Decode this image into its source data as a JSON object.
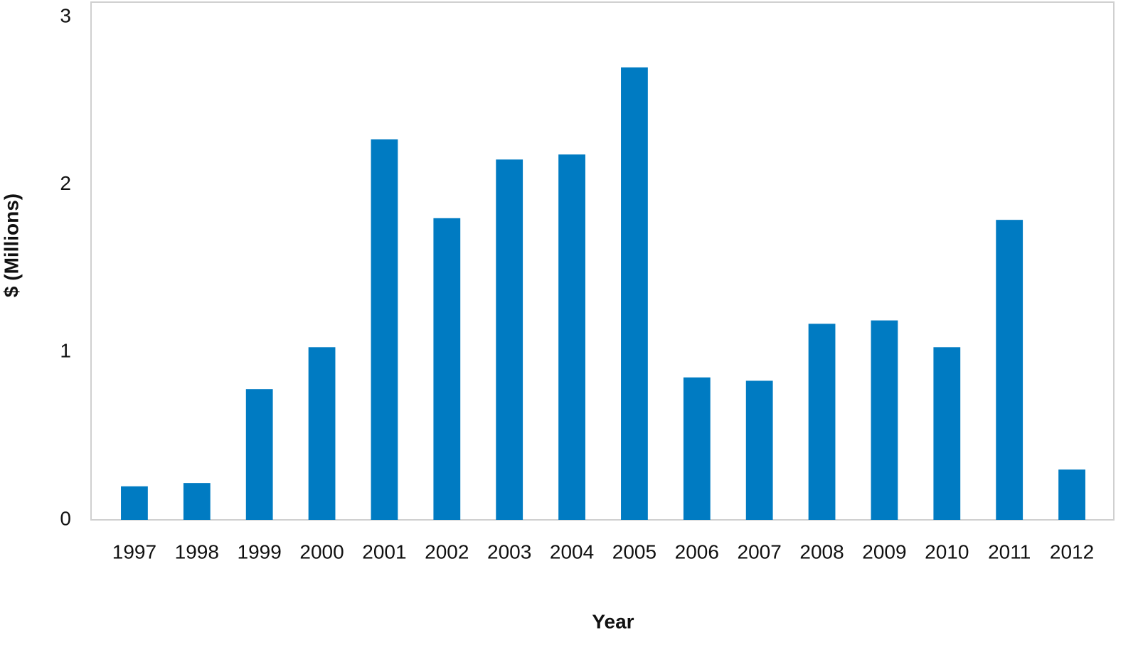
{
  "chart_data": {
    "type": "bar",
    "x_label": "Year",
    "y_label": "$ (Millions)",
    "categories": [
      "1997",
      "1998",
      "1999",
      "2000",
      "2001",
      "2002",
      "2003",
      "2004",
      "2005",
      "2006",
      "2007",
      "2008",
      "2009",
      "2010",
      "2011",
      "2012"
    ],
    "values": [
      0.2,
      0.22,
      0.78,
      1.03,
      2.27,
      1.8,
      2.15,
      2.18,
      2.7,
      0.85,
      0.83,
      1.17,
      1.19,
      1.03,
      1.79,
      0.3
    ],
    "color": "#007bc2",
    "ylim": [
      0,
      3
    ],
    "yticks": [
      0,
      1,
      2,
      3
    ],
    "grid": false
  }
}
